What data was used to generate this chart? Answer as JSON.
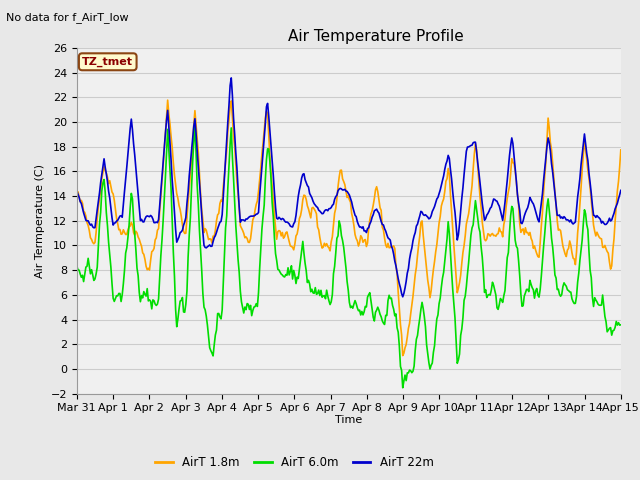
{
  "title": "Air Temperature Profile",
  "top_left_text": "No data for f_AirT_low",
  "box_label": "TZ_tmet",
  "ylabel": "Air Termperature (C)",
  "xlabel": "Time",
  "ylim": [
    -2,
    26
  ],
  "yticks": [
    -2,
    0,
    2,
    4,
    6,
    8,
    10,
    12,
    14,
    16,
    18,
    20,
    22,
    24,
    26
  ],
  "line_colors": [
    "#FFA500",
    "#00DD00",
    "#0000CC"
  ],
  "line_labels": [
    "AirT 1.8m",
    "AirT 6.0m",
    "AirT 22m"
  ],
  "line_width": 1.2,
  "bg_color": "#E8E8E8",
  "plot_bg_color": "#F0F0F0",
  "grid_color": "#CCCCCC",
  "title_fontsize": 11,
  "label_fontsize": 8,
  "tick_fontsize": 8,
  "xtick_labels": [
    "Mar 31",
    "Apr 1",
    "Apr 2",
    "Apr 3",
    "Apr 4",
    "Apr 5",
    "Apr 6",
    "Apr 7",
    "Apr 8",
    "Apr 9",
    "Apr 10",
    "Apr 11",
    "Apr 12",
    "Apr 13",
    "Apr 14",
    "Apr 15"
  ],
  "box_label_color": "#8B0000",
  "box_edge_color": "#8B4513",
  "box_face_color": "#FFFACD",
  "n_points": 480,
  "orange_x": [
    0,
    0.25,
    0.5,
    0.75,
    1.0,
    1.25,
    1.5,
    1.75,
    2.0,
    2.25,
    2.5,
    2.75,
    3.0,
    3.25,
    3.5,
    3.75,
    4.0,
    4.25,
    4.5,
    4.75,
    5.0,
    5.25,
    5.5,
    5.75,
    6.0,
    6.25,
    6.5,
    6.75,
    7.0,
    7.25,
    7.5,
    7.75,
    8.0,
    8.25,
    8.5,
    8.75,
    9.0,
    9.25,
    9.5,
    9.75,
    10.0,
    10.25,
    10.5,
    10.75,
    11.0,
    11.25,
    11.5,
    11.75,
    12.0,
    12.25,
    12.5,
    12.75,
    13.0,
    13.25,
    13.5,
    13.75,
    14.0,
    14.25,
    14.5,
    14.75,
    15.0
  ],
  "orange_y": [
    14,
    12,
    11,
    17,
    14,
    11,
    12,
    10,
    8,
    11,
    22,
    14,
    11,
    21,
    11,
    10,
    14,
    22,
    12,
    10,
    14,
    21,
    10,
    11,
    10,
    14,
    12,
    10,
    10,
    16,
    14,
    10,
    10,
    16,
    10,
    10,
    1,
    5,
    12,
    5,
    12,
    16,
    6,
    12,
    18,
    10,
    11,
    10,
    18,
    11,
    11,
    9,
    20,
    11,
    10,
    9,
    19,
    12,
    10,
    9,
    16
  ],
  "green_x": [
    0,
    0.25,
    0.5,
    0.75,
    1.0,
    1.25,
    1.5,
    1.75,
    2.0,
    2.25,
    2.5,
    2.75,
    3.0,
    3.25,
    3.5,
    3.75,
    4.0,
    4.25,
    4.5,
    4.75,
    5.0,
    5.25,
    5.5,
    5.75,
    6.0,
    6.25,
    6.5,
    6.75,
    7.0,
    7.25,
    7.5,
    7.75,
    8.0,
    8.25,
    8.5,
    8.75,
    9.0,
    9.25,
    9.5,
    9.75,
    10.0,
    10.25,
    10.5,
    10.75,
    11.0,
    11.25,
    11.5,
    11.75,
    12.0,
    12.25,
    12.5,
    12.75,
    13.0,
    13.25,
    13.5,
    13.75,
    14.0,
    14.25,
    14.5,
    14.75,
    15.0
  ],
  "green_y": [
    9,
    8,
    7,
    16,
    6,
    6,
    15,
    6,
    6,
    5,
    19,
    5,
    5,
    19,
    5,
    1,
    5,
    19,
    5,
    5,
    6,
    19,
    8,
    8,
    8,
    9,
    6,
    6,
    6,
    12,
    6,
    5,
    5,
    5,
    5,
    5,
    -2,
    0,
    5,
    0,
    5,
    12,
    0,
    6,
    15,
    6,
    6,
    5,
    13,
    6,
    6,
    5,
    13,
    6,
    6,
    5,
    13,
    6,
    5,
    3,
    3
  ],
  "blue_x": [
    0,
    0.25,
    0.5,
    0.75,
    1.0,
    1.25,
    1.5,
    1.75,
    2.0,
    2.25,
    2.5,
    2.75,
    3.0,
    3.25,
    3.5,
    3.75,
    4.0,
    4.25,
    4.5,
    4.75,
    5.0,
    5.25,
    5.5,
    5.75,
    6.0,
    6.25,
    6.5,
    6.75,
    7.0,
    7.25,
    7.5,
    7.75,
    8.0,
    8.25,
    8.5,
    8.75,
    9.0,
    9.25,
    9.5,
    9.75,
    10.0,
    10.25,
    10.5,
    10.75,
    11.0,
    11.25,
    11.5,
    11.75,
    12.0,
    12.25,
    12.5,
    12.75,
    13.0,
    13.25,
    13.5,
    13.75,
    14.0,
    14.25,
    14.5,
    14.75,
    15.0
  ],
  "blue_y": [
    14,
    12,
    12,
    17,
    12,
    12,
    20,
    12,
    12,
    12,
    21,
    10,
    12,
    21,
    10,
    10,
    12,
    24,
    12,
    12,
    12,
    22,
    12,
    12,
    12,
    16,
    13,
    13,
    13,
    15,
    14,
    12,
    11,
    13,
    11,
    9,
    6,
    10,
    13,
    12,
    14,
    18,
    10,
    18,
    18,
    12,
    14,
    12,
    19,
    12,
    14,
    12,
    19,
    12,
    12,
    12,
    19,
    12,
    12,
    12,
    14
  ]
}
